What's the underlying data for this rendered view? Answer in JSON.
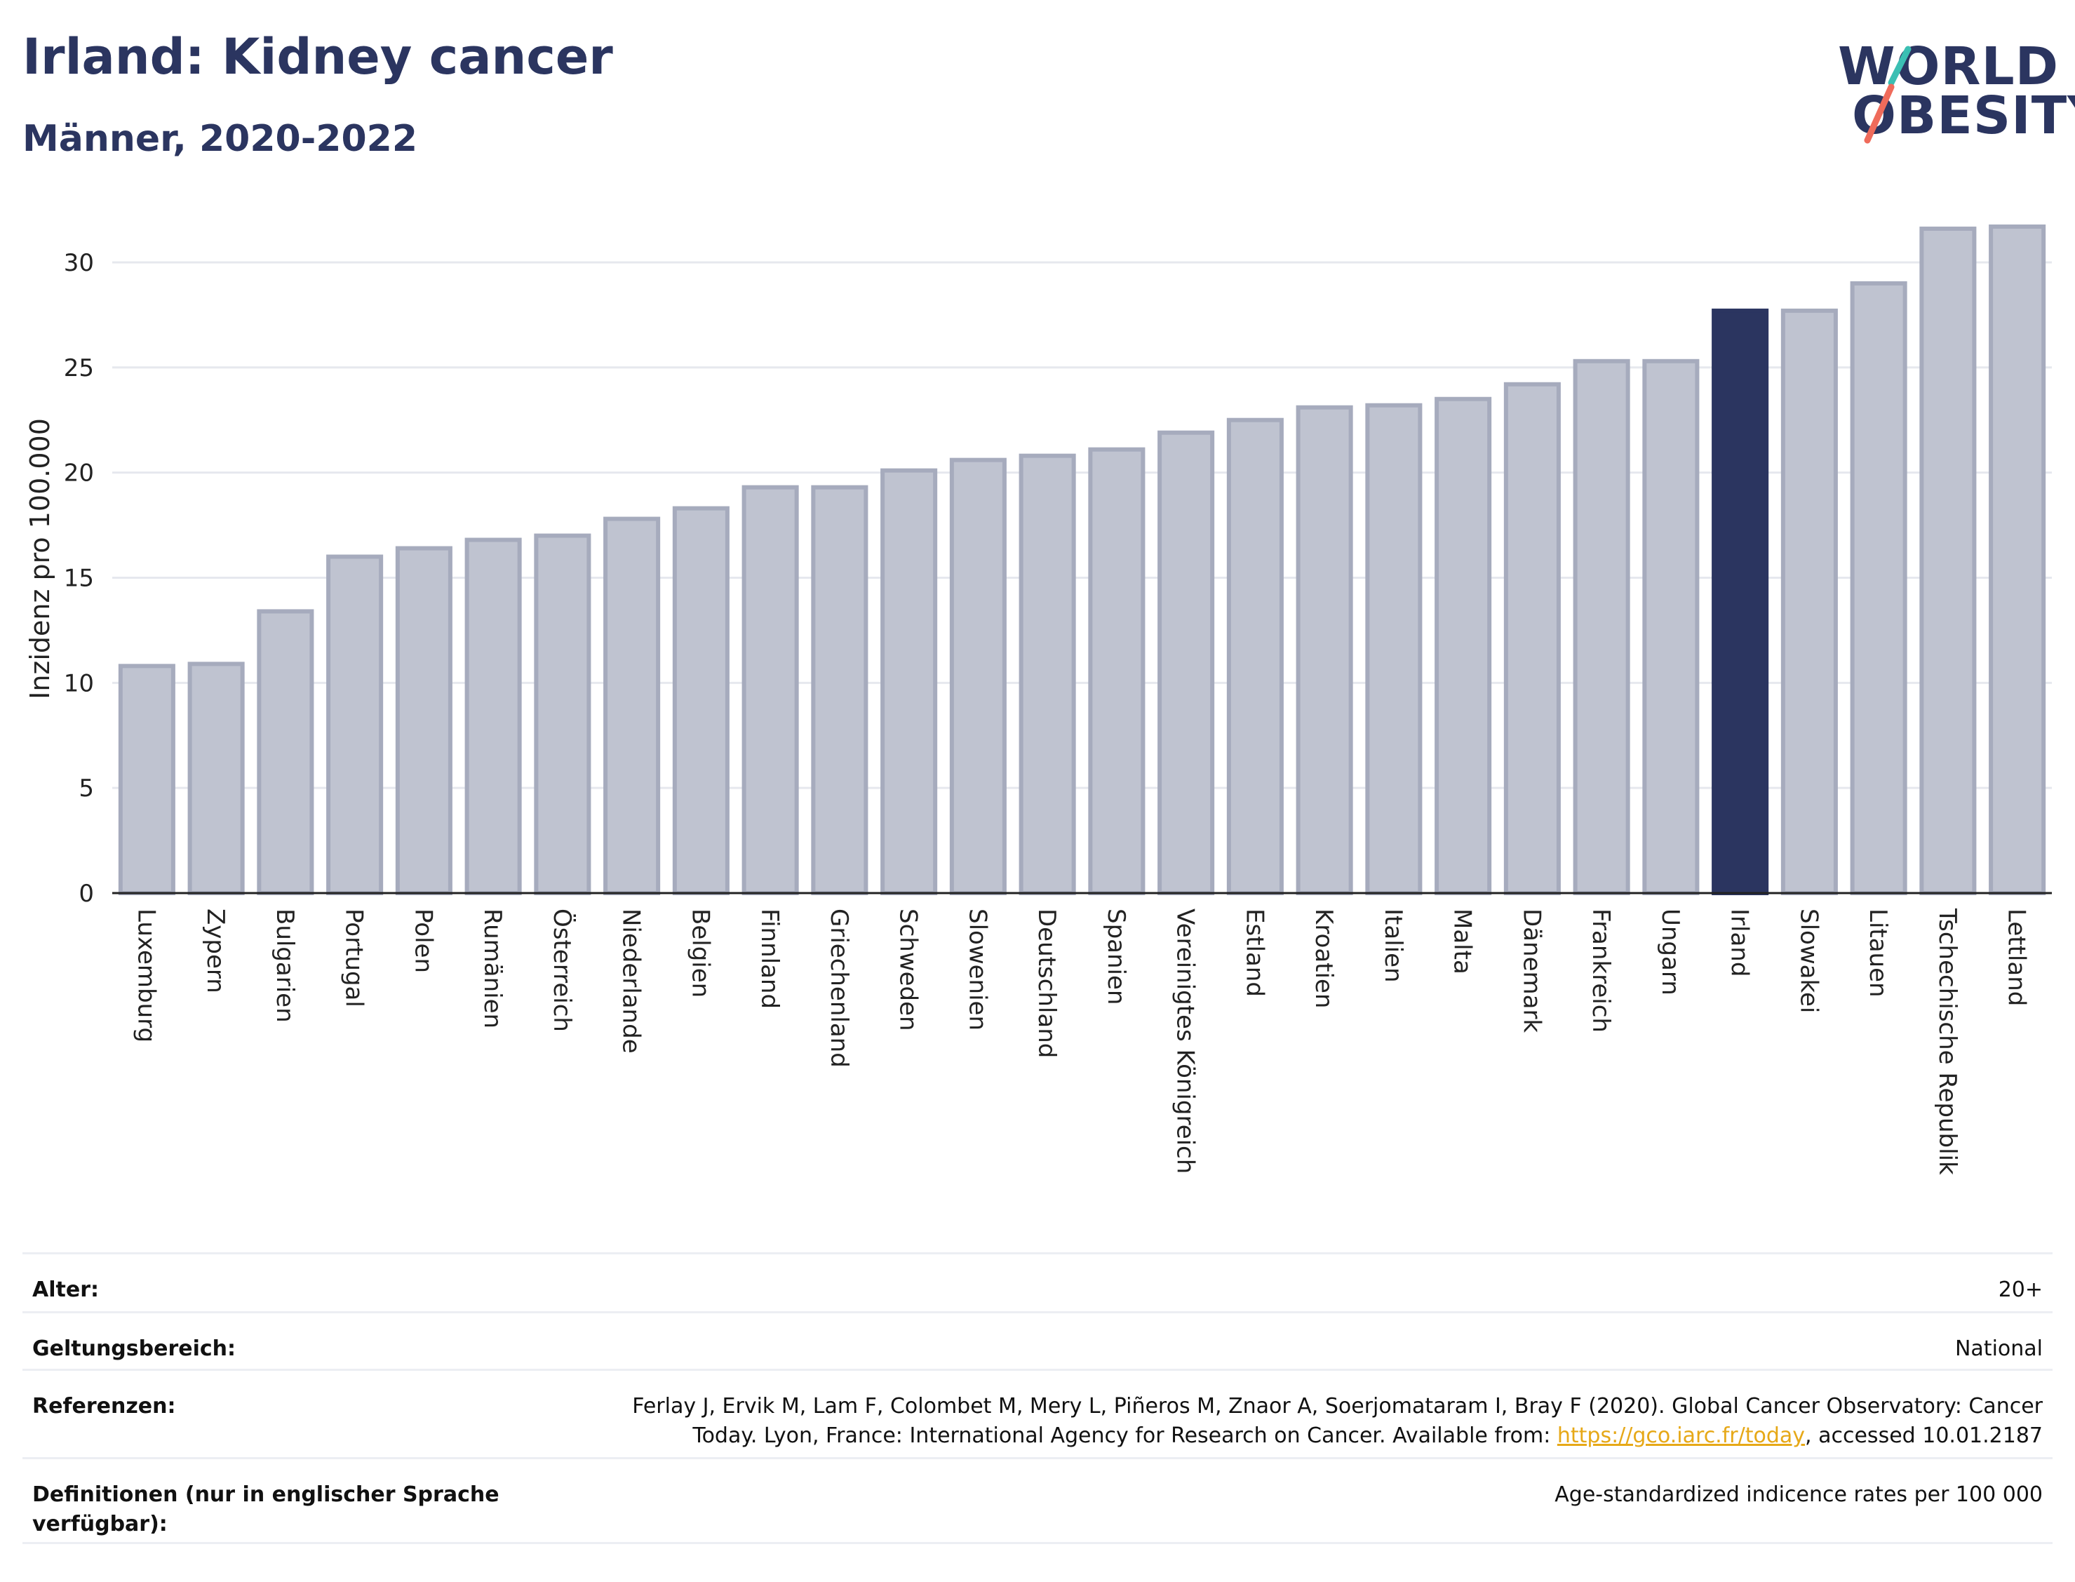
{
  "header": {
    "title": "Irland: Kidney cancer",
    "subtitle": "Männer, 2020-2022",
    "logo_line1": "WORLD",
    "logo_line2": "OBESITY"
  },
  "colors": {
    "highlight": "#2b3560",
    "bar": "#bfc3d0",
    "bar_stroke": "#a6abbd",
    "title": "#2b3560",
    "link": "#e6a817",
    "logo_slash_top": "#3bbfb3",
    "logo_slash_bottom": "#ef6b5b"
  },
  "chart_data": {
    "type": "bar",
    "title": "",
    "xlabel": "",
    "ylabel": "Inzidenz pro 100.000",
    "ylim": [
      0,
      31.8
    ],
    "yticks": [
      0,
      5,
      10,
      15,
      20,
      25,
      30
    ],
    "grid": true,
    "highlight_category": "Irland",
    "categories": [
      "Luxemburg",
      "Zypern",
      "Bulgarien",
      "Portugal",
      "Polen",
      "Rumänien",
      "Österreich",
      "Niederlande",
      "Belgien",
      "Finnland",
      "Griechenland",
      "Schweden",
      "Slowenien",
      "Deutschland",
      "Spanien",
      "Vereinigtes Königreich",
      "Estland",
      "Kroatien",
      "Italien",
      "Malta",
      "Dänemark",
      "Frankreich",
      "Ungarn",
      "Irland",
      "Slowakei",
      "Litauen",
      "Tschechische Republik",
      "Lettland"
    ],
    "values": [
      10.8,
      10.9,
      13.4,
      16.0,
      16.4,
      16.8,
      17.0,
      17.8,
      18.3,
      19.3,
      19.3,
      20.1,
      20.6,
      20.8,
      21.1,
      21.9,
      22.5,
      23.1,
      23.2,
      23.5,
      24.2,
      25.3,
      25.3,
      27.7,
      27.7,
      29.0,
      31.6,
      31.7
    ]
  },
  "meta": {
    "age_label": "Alter:",
    "age_value": "20+",
    "scope_label": "Geltungsbereich:",
    "scope_value": "National",
    "ref_label": "Referenzen:",
    "ref_text1": "Ferlay J, Ervik M, Lam F, Colombet M, Mery L, Piñeros M, Znaor A, Soerjomataram I, Bray F (2020). Global Cancer Observatory: Cancer",
    "ref_text2": "Today. Lyon, France: International Agency for Research on Cancer. Available from: ",
    "ref_link": "https://gco.iarc.fr/today",
    "ref_text3": ", accessed 10.01.2187",
    "def_label": "Definitionen (nur in englischer Sprache verfügbar):",
    "def_value": "Age-standardized indicence rates per 100 000"
  }
}
